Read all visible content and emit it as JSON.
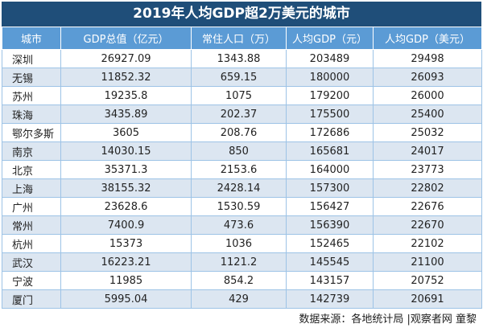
{
  "header": {
    "title": "2019年人均GDP超2万美元的城市"
  },
  "table": {
    "columns": [
      "城市",
      "GDP总值（亿元）",
      "常住人口（万）",
      "人均GDP（元）",
      "人均GDP（美元）"
    ],
    "rows": [
      [
        "深圳",
        "26927.09",
        "1343.88",
        "203489",
        "29498"
      ],
      [
        "无锡",
        "11852.32",
        "659.15",
        "180000",
        "26093"
      ],
      [
        "苏州",
        "19235.8",
        "1075",
        "179200",
        "26000"
      ],
      [
        "珠海",
        "3435.89",
        "202.37",
        "175500",
        "25400"
      ],
      [
        "鄂尔多斯",
        "3605",
        "208.76",
        "172686",
        "25032"
      ],
      [
        "南京",
        "14030.15",
        "850",
        "165681",
        "24017"
      ],
      [
        "北京",
        "35371.3",
        "2153.6",
        "164000",
        "23773"
      ],
      [
        "上海",
        "38155.32",
        "2428.14",
        "157300",
        "22802"
      ],
      [
        "广州",
        "23628.6",
        "1530.59",
        "156427",
        "22676"
      ],
      [
        "常州",
        "7400.9",
        "473.6",
        "156390",
        "22670"
      ],
      [
        "杭州",
        "15373",
        "1036",
        "152465",
        "22102"
      ],
      [
        "武汉",
        "16223.21",
        "1121.2",
        "145545",
        "21100"
      ],
      [
        "宁波",
        "11985",
        "854.2",
        "143157",
        "20752"
      ],
      [
        "厦门",
        "5995.04",
        "429",
        "142739",
        "20691"
      ]
    ]
  },
  "footer": {
    "source": "数据来源：各地统计局 |观察者网 童黎"
  }
}
